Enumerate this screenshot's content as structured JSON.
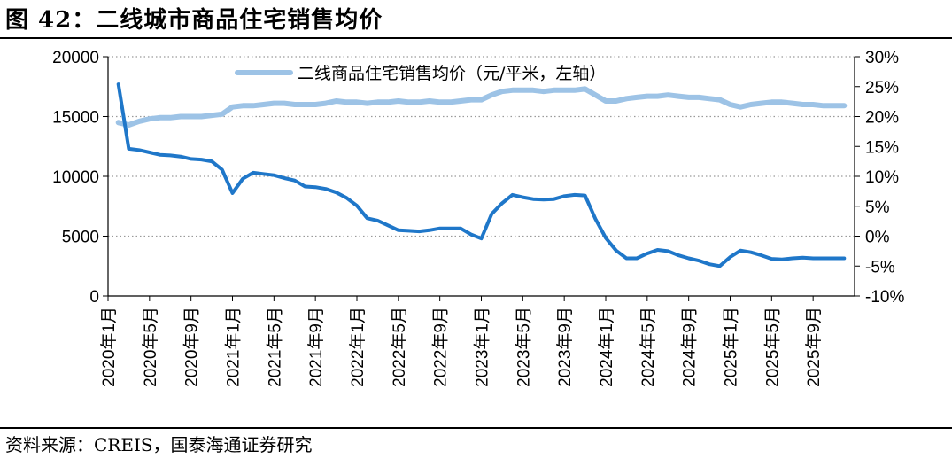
{
  "figure": {
    "title": "图 42：二线城市商品住宅销售均价",
    "source": "资料来源：CREIS，国泰海通证券研究"
  },
  "chart_data": {
    "type": "line",
    "x": [
      "2020年1月",
      "2020年2月",
      "2020年3月",
      "2020年4月",
      "2020年5月",
      "2020年6月",
      "2020年7月",
      "2020年8月",
      "2020年9月",
      "2020年10月",
      "2020年11月",
      "2020年12月",
      "2021年1月",
      "2021年2月",
      "2021年3月",
      "2021年4月",
      "2021年5月",
      "2021年6月",
      "2021年7月",
      "2021年8月",
      "2021年9月",
      "2021年10月",
      "2021年11月",
      "2021年12月",
      "2022年1月",
      "2022年2月",
      "2022年3月",
      "2022年4月",
      "2022年5月",
      "2022年6月",
      "2022年7月",
      "2022年8月",
      "2022年9月",
      "2022年10月",
      "2022年11月",
      "2022年12月",
      "2023年1月",
      "2023年2月",
      "2023年3月",
      "2023年4月",
      "2023年5月",
      "2023年6月",
      "2023年7月",
      "2023年8月",
      "2023年9月",
      "2023年10月",
      "2023年11月",
      "2023年12月",
      "2024年1月",
      "2024年2月",
      "2024年3月",
      "2024年4月",
      "2024年5月",
      "2024年6月",
      "2024年7月",
      "2024年8月",
      "2024年9月",
      "2024年10月",
      "2024年11月",
      "2024年12月",
      "2025年1月",
      "2025年2月",
      "2025年3月",
      "2025年4月",
      "2025年5月",
      "2025年6月",
      "2025年7月",
      "2025年8月",
      "2025年9月",
      "2025年10月",
      "2025年11月",
      "2025年12月"
    ],
    "x_tick_labels": [
      "2020年1月",
      "2020年5月",
      "2020年9月",
      "2021年1月",
      "2021年5月",
      "2021年9月",
      "2022年1月",
      "2022年5月",
      "2022年9月",
      "2023年1月",
      "2023年5月",
      "2023年9月",
      "2024年1月",
      "2024年5月",
      "2024年9月",
      "2025年1月",
      "2025年5月",
      "2025年9月"
    ],
    "y_left": {
      "ticks": [
        "0",
        "5000",
        "10000",
        "15000",
        "20000"
      ],
      "lim": [
        0,
        20000
      ]
    },
    "y_right": {
      "ticks": [
        "-10%",
        "-5%",
        "0%",
        "5%",
        "10%",
        "15%",
        "20%",
        "25%",
        "30%"
      ],
      "lim": [
        -10,
        30
      ]
    },
    "grid": "horizontal dotted",
    "legend_position": "top",
    "series": [
      {
        "name": "二线商品住宅销售均价（元/平米，左轴）",
        "axis": "left",
        "color": "#9dc3e6",
        "values": [
          null,
          14500,
          14300,
          14600,
          14800,
          14900,
          14900,
          15000,
          15000,
          15000,
          15100,
          15200,
          15800,
          15900,
          15900,
          16000,
          16100,
          16100,
          16000,
          16000,
          16000,
          16100,
          16300,
          16200,
          16200,
          16100,
          16200,
          16200,
          16300,
          16200,
          16200,
          16300,
          16200,
          16200,
          16300,
          16400,
          16400,
          16800,
          17100,
          17200,
          17200,
          17200,
          17100,
          17200,
          17200,
          17200,
          17300,
          16800,
          16300,
          16300,
          16500,
          16600,
          16700,
          16700,
          16800,
          16700,
          16600,
          16600,
          16500,
          16400,
          16000,
          15800,
          16000,
          16100,
          16200,
          16200,
          16100,
          16000,
          16000,
          15900,
          15900,
          15900
        ]
      },
      {
        "name": "",
        "axis": "right",
        "color": "#1f77c9",
        "values": [
          null,
          25.4,
          14.6,
          14.4,
          14.0,
          13.6,
          13.5,
          13.3,
          12.9,
          12.8,
          12.5,
          11.1,
          7.2,
          9.6,
          10.6,
          10.4,
          10.2,
          9.7,
          9.3,
          8.3,
          8.2,
          7.9,
          7.3,
          6.4,
          5.1,
          3.0,
          2.6,
          1.8,
          1.0,
          0.9,
          0.8,
          1.0,
          1.3,
          1.3,
          1.3,
          0.3,
          -0.4,
          3.7,
          5.5,
          6.9,
          6.5,
          6.2,
          6.1,
          6.2,
          6.7,
          6.9,
          6.8,
          2.9,
          -0.3,
          -2.4,
          -3.7,
          -3.7,
          -2.9,
          -2.3,
          -2.5,
          -3.2,
          -3.7,
          -4.1,
          -4.7,
          -5.0,
          -3.5,
          -2.4,
          -2.7,
          -3.2,
          -3.8,
          -3.9,
          -3.7,
          -3.6,
          -3.7,
          -3.7,
          -3.7,
          -3.7
        ]
      }
    ]
  }
}
